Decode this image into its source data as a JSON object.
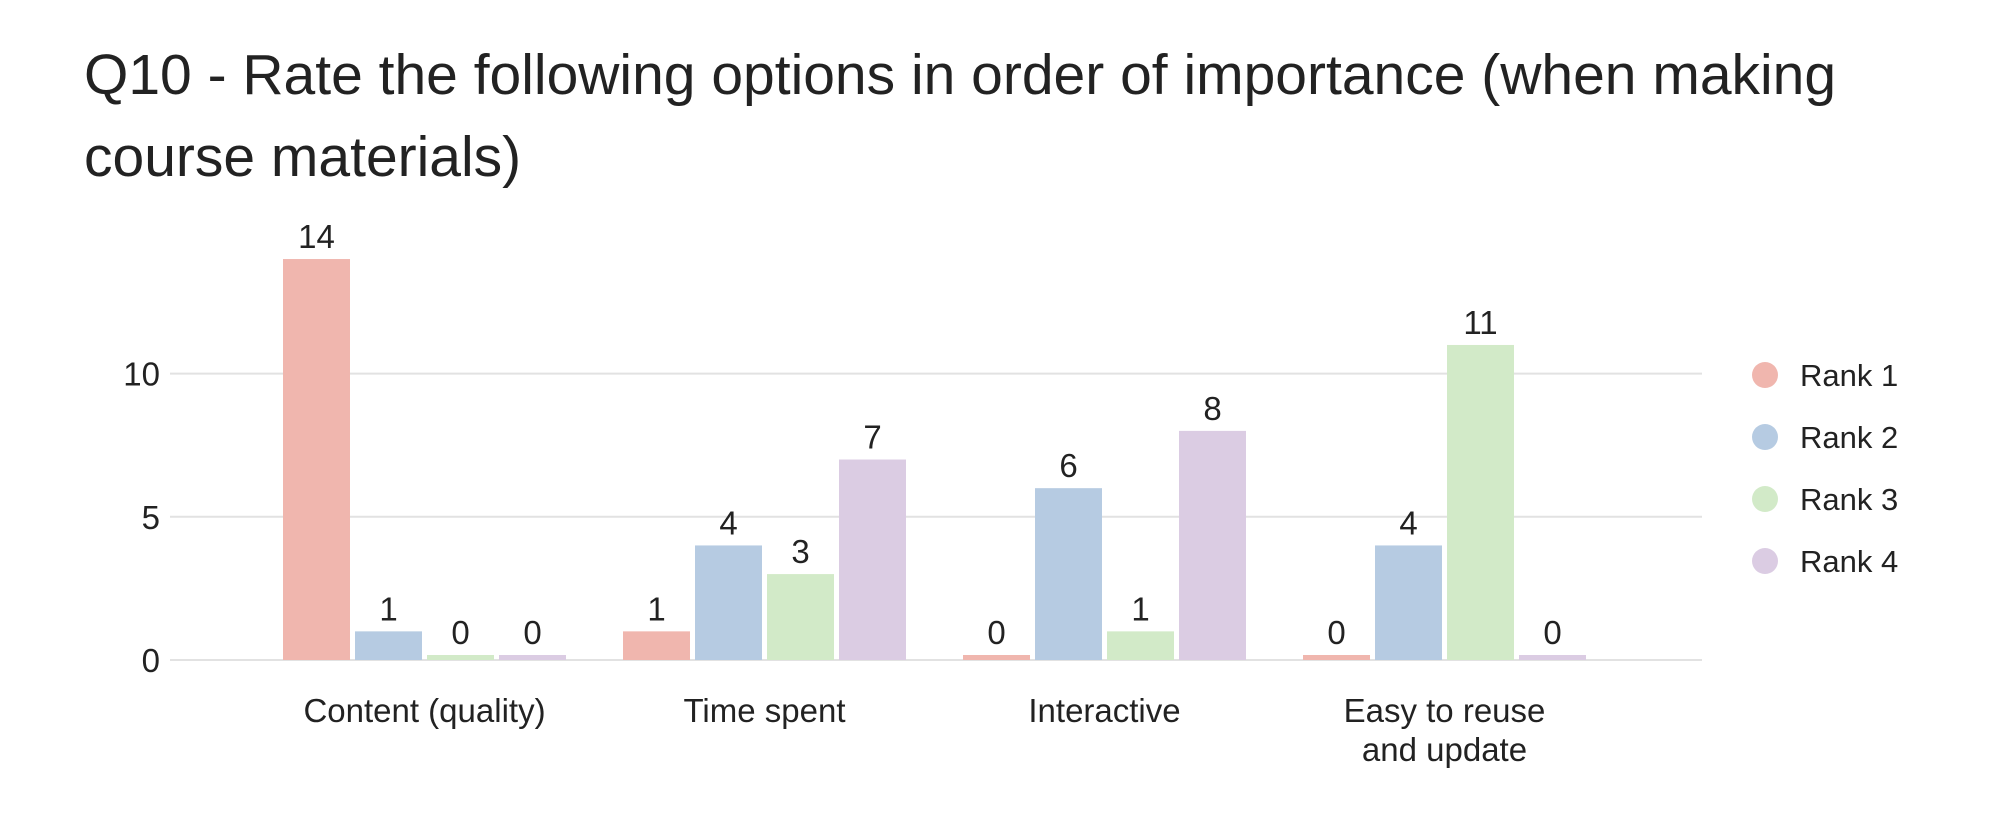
{
  "chart_data": {
    "type": "bar",
    "title": "Q10 - Rate the following options in order of importance (when making course materials)",
    "categories": [
      [
        "Content (quality)"
      ],
      [
        "Time spent"
      ],
      [
        "Interactive"
      ],
      [
        "Easy to reuse",
        "and update"
      ]
    ],
    "series": [
      {
        "name": "Rank 1",
        "values": [
          14,
          1,
          0,
          0
        ],
        "color": "#f0b6ae"
      },
      {
        "name": "Rank 2",
        "values": [
          1,
          4,
          6,
          4
        ],
        "color": "#b6cbe2"
      },
      {
        "name": "Rank 3",
        "values": [
          0,
          3,
          1,
          11
        ],
        "color": "#d2eac8"
      },
      {
        "name": "Rank 4",
        "values": [
          0,
          7,
          8,
          0
        ],
        "color": "#dbcce3"
      }
    ],
    "yticks": [
      0,
      5,
      10
    ],
    "ylim": [
      0,
      14
    ],
    "grid": true,
    "legend_position": "right"
  }
}
